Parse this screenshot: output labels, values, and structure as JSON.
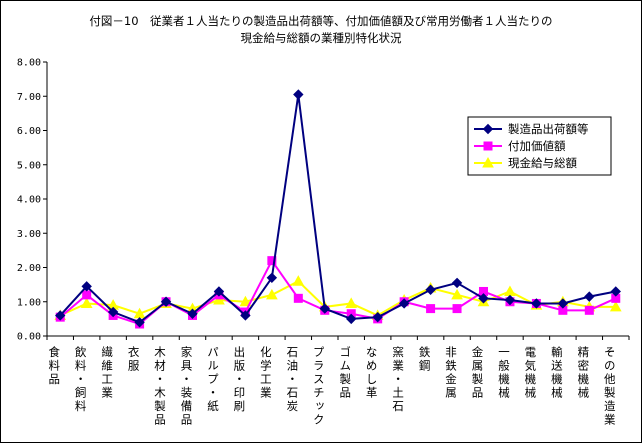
{
  "chart_data": {
    "type": "line",
    "title_line1": "付図－10　従業者１人当たりの製造品出荷額等、付加価値額及び常用労働者１人当たりの",
    "title_line2": "現金給与総額の業種別特化状況",
    "ylim": [
      0,
      8
    ],
    "yticks": [
      "0.00",
      "1.00",
      "2.00",
      "3.00",
      "4.00",
      "5.00",
      "6.00",
      "7.00",
      "8.00"
    ],
    "grid": false,
    "legend_position": "right",
    "categories": [
      "食料品",
      "飲料・飼料",
      "繊維工業",
      "衣服",
      "木材・木製品",
      "家具・装備品",
      "パルプ・紙",
      "出版・印刷",
      "化学工業",
      "石油・石炭",
      "プラスチック",
      "ゴム製品",
      "なめし革",
      "窯業・土石",
      "鉄鋼",
      "非鉄金属",
      "金属製品",
      "一般機械",
      "電気機械",
      "輸送機械",
      "精密機械",
      "その他製造業"
    ],
    "series": [
      {
        "name": "製造品出荷額等",
        "color": "#000080",
        "marker": "diamond",
        "values": [
          0.6,
          1.45,
          0.7,
          0.4,
          1.0,
          0.65,
          1.3,
          0.6,
          1.7,
          7.05,
          0.8,
          0.5,
          0.55,
          0.95,
          1.35,
          1.55,
          1.1,
          1.05,
          0.95,
          0.95,
          1.15,
          1.3
        ]
      },
      {
        "name": "付加価値額",
        "color": "#FF00FF",
        "marker": "square",
        "values": [
          0.55,
          1.2,
          0.6,
          0.35,
          1.0,
          0.6,
          1.2,
          0.7,
          2.2,
          1.1,
          0.75,
          0.65,
          0.5,
          1.0,
          0.8,
          0.8,
          1.3,
          1.0,
          0.95,
          0.75,
          0.75,
          1.1
        ]
      },
      {
        "name": "現金給与総額",
        "color": "#FFFF00",
        "marker": "triangle",
        "values": [
          0.6,
          0.95,
          0.9,
          0.65,
          0.95,
          0.8,
          1.05,
          1.0,
          1.2,
          1.6,
          0.85,
          0.95,
          0.6,
          1.05,
          1.4,
          1.2,
          1.0,
          1.3,
          0.9,
          1.0,
          0.85,
          0.85
        ]
      }
    ]
  }
}
